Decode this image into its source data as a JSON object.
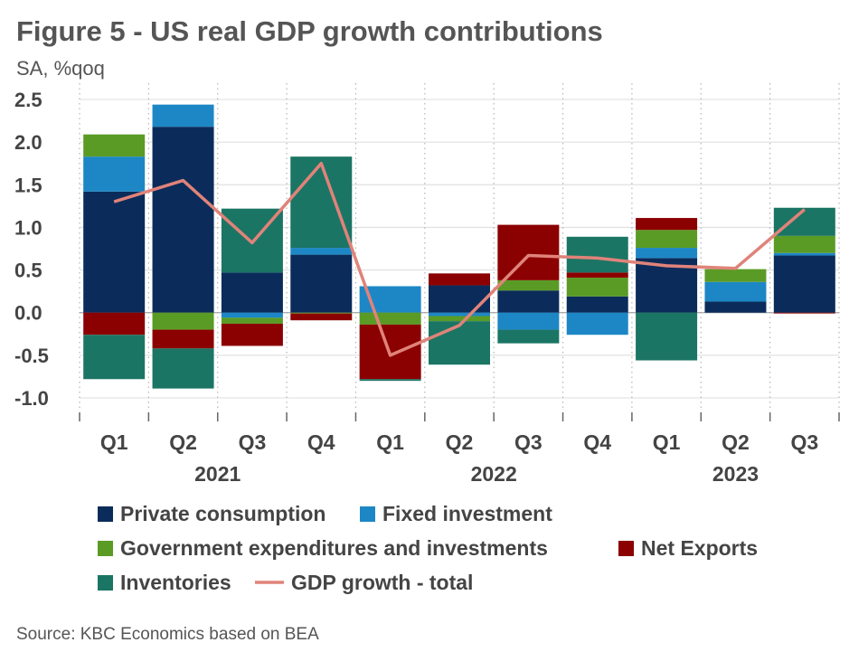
{
  "chart_data": {
    "type": "bar",
    "stacked": true,
    "title": "Figure 5 - US real GDP growth contributions",
    "subtitle": "SA, %qoq",
    "source": "Source: KBC Economics based on BEA",
    "categories": [
      "Q1",
      "Q2",
      "Q3",
      "Q4",
      "Q1",
      "Q2",
      "Q3",
      "Q4",
      "Q1",
      "Q2",
      "Q3"
    ],
    "years": [
      {
        "label": "2021",
        "start": 0,
        "end": 3
      },
      {
        "label": "2022",
        "start": 4,
        "end": 7
      },
      {
        "label": "2023",
        "start": 8,
        "end": 10
      }
    ],
    "ylim": [
      -1.0,
      2.5
    ],
    "yticks": [
      2.5,
      2.0,
      1.5,
      1.0,
      0.5,
      0.0,
      -0.5,
      -1.0
    ],
    "ytick_labels": [
      "2.5",
      "2.0",
      "1.5",
      "1.0",
      "0.5",
      "0.0",
      "-0.5",
      "-1.0"
    ],
    "grid": true,
    "series": [
      {
        "name": "Private consumption",
        "color": "#0b2c5a",
        "values": [
          1.42,
          2.18,
          0.47,
          0.68,
          0.0,
          0.32,
          0.26,
          0.19,
          0.64,
          0.13,
          0.67
        ]
      },
      {
        "name": "Fixed investment",
        "color": "#1d87c5",
        "values": [
          0.41,
          0.26,
          -0.06,
          0.08,
          0.31,
          -0.04,
          -0.2,
          -0.26,
          0.12,
          0.23,
          0.03
        ]
      },
      {
        "name": "Government expenditures and investments",
        "color": "#5a9b25",
        "values": [
          0.26,
          -0.2,
          -0.07,
          -0.01,
          -0.14,
          -0.06,
          0.12,
          0.22,
          0.21,
          0.15,
          0.2
        ]
      },
      {
        "name": "Net Exports",
        "color": "#8b0000",
        "values": [
          -0.26,
          -0.22,
          -0.26,
          -0.08,
          -0.64,
          0.14,
          0.65,
          0.06,
          0.14,
          0.0,
          -0.01
        ]
      },
      {
        "name": "Inventories",
        "color": "#1b7564",
        "values": [
          -0.52,
          -0.47,
          0.75,
          1.07,
          -0.02,
          -0.51,
          -0.16,
          0.42,
          -0.56,
          0.0,
          0.33
        ]
      }
    ],
    "line": {
      "name": "GDP growth - total",
      "color": "#e0837a",
      "values": [
        1.3,
        1.55,
        0.82,
        1.75,
        -0.5,
        -0.15,
        0.67,
        0.64,
        0.55,
        0.52,
        1.21
      ]
    },
    "legend": {
      "placement": "bottom"
    }
  }
}
